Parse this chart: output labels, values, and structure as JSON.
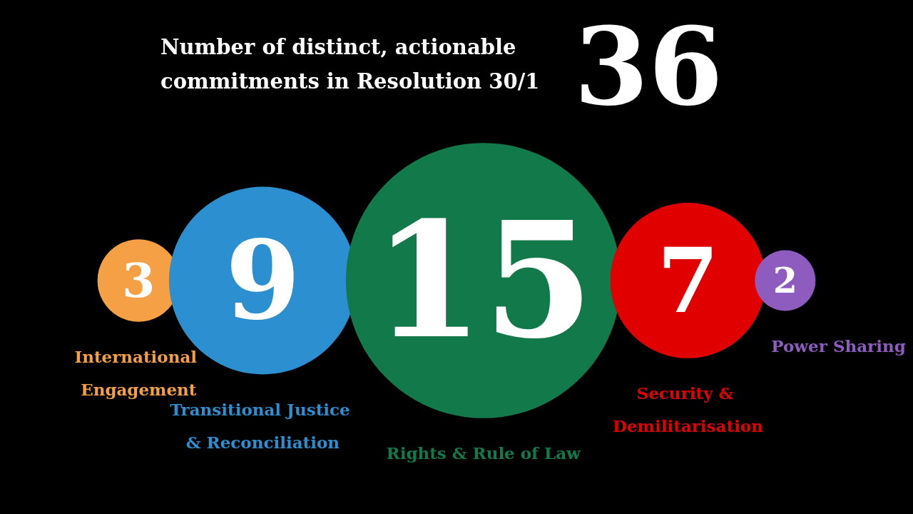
{
  "chart_data": {
    "type": "other",
    "title": "Number of distinct, actionable commitments in Resolution 30/1",
    "annotations": [
      "36"
    ],
    "categories": [
      "International Engagement",
      "Transitional Justice & Reconciliation",
      "Rights & Rule of Law",
      "Security & Demilitarisation",
      "Power Sharing"
    ],
    "values": [
      3,
      9,
      15,
      7,
      2
    ],
    "data_labels": true,
    "colors": [
      "#f5a044",
      "#2b8fd0",
      "#127a4a",
      "#e00000",
      "#8e5bbf"
    ]
  }
}
